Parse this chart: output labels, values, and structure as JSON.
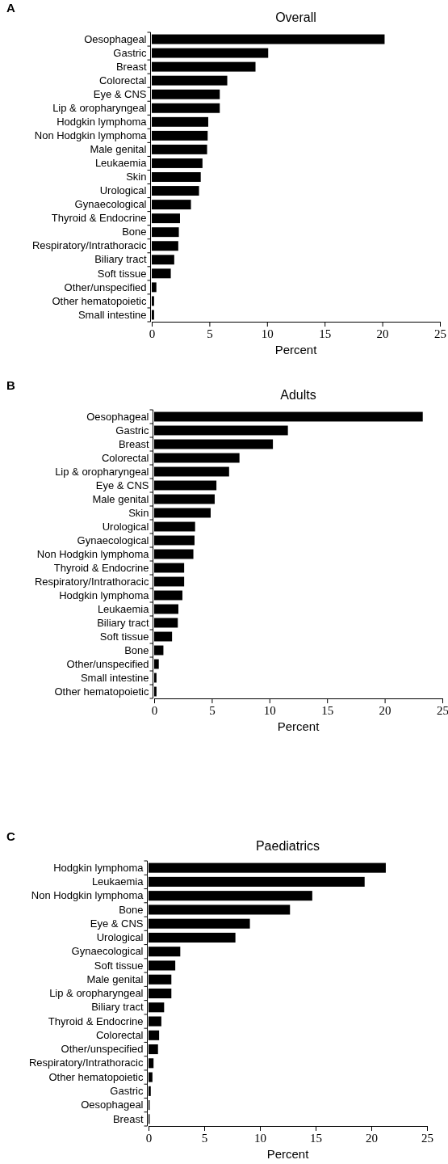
{
  "chart_data": [
    {
      "type": "bar",
      "orientation": "horizontal",
      "title": "Overall",
      "xlabel": "Percent",
      "annotations": [
        "A"
      ],
      "categories": [
        "Oesophageal",
        "Gastric",
        "Breast",
        "Colorectal",
        "Eye & CNS",
        "Lip & oropharyngeal",
        "Hodgkin lymphoma",
        "Non Hodgkin lymphoma",
        "Male genital",
        "Leukaemia",
        "Skin",
        "Urological",
        "Gynaecological",
        "Thyroid & Endocrine",
        "Bone",
        "Respiratory/Intrathoracic",
        "Biliary tract",
        "Soft tissue",
        "Other/unspecified",
        "Other hematopoietic",
        "Small intestine"
      ],
      "values": [
        20.2,
        10.1,
        9.0,
        6.55,
        5.9,
        5.9,
        4.9,
        4.85,
        4.8,
        4.4,
        4.25,
        4.1,
        3.4,
        2.45,
        2.35,
        2.3,
        1.95,
        1.65,
        0.4,
        0.2,
        0.2
      ],
      "color": "#000000",
      "xlim": [
        0,
        25
      ],
      "xticks": [
        0,
        5,
        10,
        15,
        20,
        25
      ],
      "grid": false
    },
    {
      "type": "bar",
      "orientation": "horizontal",
      "title": "Adults",
      "xlabel": "Percent",
      "annotations": [
        "B"
      ],
      "categories": [
        "Oesophageal",
        "Gastric",
        "Breast",
        "Colorectal",
        "Lip & oropharyngeal",
        "Eye & CNS",
        "Male genital",
        "Skin",
        "Urological",
        "Gynaecological",
        "Non Hodgkin lymphoma",
        "Thyroid & Endocrine",
        "Respiratory/Intrathoracic",
        "Hodgkin lymphoma",
        "Leukaemia",
        "Biliary tract",
        "Soft tissue",
        "Bone",
        "Other/unspecified",
        "Small intestine",
        "Other hematopoietic"
      ],
      "values": [
        23.3,
        11.6,
        10.3,
        7.4,
        6.5,
        5.4,
        5.25,
        4.9,
        3.55,
        3.5,
        3.4,
        2.6,
        2.6,
        2.45,
        2.1,
        2.05,
        1.55,
        0.8,
        0.4,
        0.2,
        0.2
      ],
      "color": "#000000",
      "xlim": [
        0,
        25
      ],
      "xticks": [
        0,
        5,
        10,
        15,
        20,
        25
      ],
      "grid": false
    },
    {
      "type": "bar",
      "orientation": "horizontal",
      "title": "Paediatrics",
      "xlabel": "Percent",
      "annotations": [
        "C"
      ],
      "categories": [
        "Hodgkin lymphoma",
        "Leukaemia",
        "Non Hodgkin lymphoma",
        "Bone",
        "Eye & CNS",
        "Urological",
        "Gynaecological",
        "Soft tissue",
        "Male genital",
        "Lip & oropharyngeal",
        "Biliary tract",
        "Thyroid & Endocrine",
        "Colorectal",
        "Other/unspecified",
        "Respiratory/Intrathoracic",
        "Other hematopoietic",
        "Gastric",
        "Oesophageal",
        "Breast"
      ],
      "values": [
        21.3,
        19.4,
        14.7,
        12.7,
        9.1,
        7.8,
        2.85,
        2.4,
        2.05,
        2.05,
        1.4,
        1.15,
        0.95,
        0.85,
        0.45,
        0.35,
        0.2,
        0.1,
        0.1
      ],
      "color": "#000000",
      "xlim": [
        0,
        25
      ],
      "xticks": [
        0,
        5,
        10,
        15,
        20,
        25
      ],
      "grid": false
    }
  ]
}
